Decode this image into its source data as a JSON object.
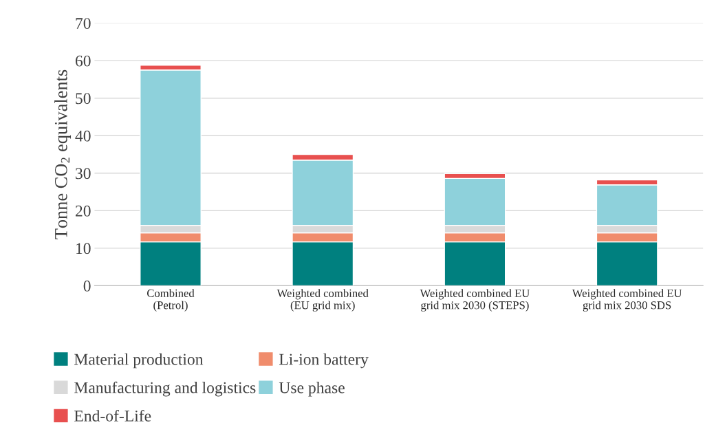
{
  "chart_data": {
    "type": "bar",
    "stacked": true,
    "ylabel": "Tonne CO$_{2}$ equivalents",
    "categories": [
      "Combined\n(Petrol)",
      "Weighted combined\n(EU grid mix)",
      "Weighted combined EU\ngrid mix 2030 (STEPS)",
      "Weighted combined EU\ngrid mix 2030 SDS"
    ],
    "series": [
      {
        "name": "Material production",
        "color": "#00807f",
        "values": [
          11.7,
          11.7,
          11.7,
          11.7
        ]
      },
      {
        "name": "Li-ion battery",
        "color": "#f08c6c",
        "values": [
          2.4,
          2.4,
          2.4,
          2.4
        ]
      },
      {
        "name": "Manufacturing and logistics",
        "color": "#d9d9d9",
        "values": [
          2.0,
          2.0,
          2.0,
          2.0
        ]
      },
      {
        "name": "Use phase",
        "color": "#8ed1db",
        "values": [
          41.4,
          17.4,
          12.5,
          10.8
        ]
      },
      {
        "name": "End-of-Life",
        "color": "#e8504f",
        "values": [
          1.3,
          1.5,
          1.3,
          1.3
        ]
      }
    ],
    "ylim": [
      0,
      70
    ],
    "yticks": [
      0,
      10,
      20,
      30,
      40,
      50,
      60,
      70
    ],
    "grid": "y",
    "legend": "bottom"
  }
}
